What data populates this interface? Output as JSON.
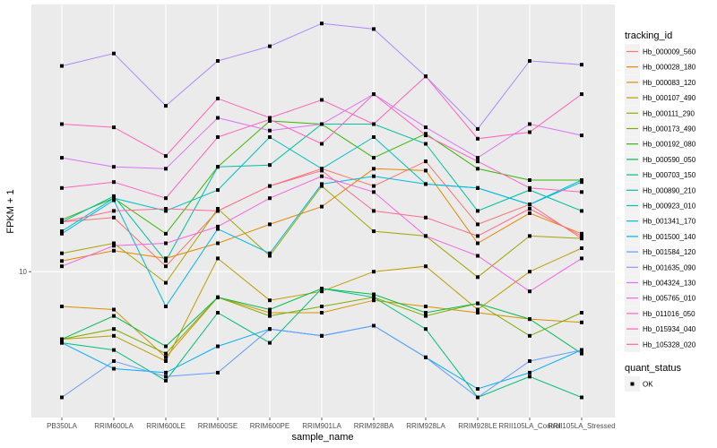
{
  "chart_data": {
    "type": "line",
    "title": "",
    "xlabel": "sample_name",
    "ylabel": "FPKM + 1",
    "y_scale": "log10",
    "ylim": [
      5.85,
      26.7
    ],
    "y_ticks": [
      10
    ],
    "y_tick_labels": [
      "10"
    ],
    "grid": true,
    "legend_position": "right",
    "categories": [
      "PB350LA",
      "RRIM600LA",
      "RRIM600LE",
      "RRIM600SE",
      "RRIM600PE",
      "RRIM901LA",
      "RRIM928BA",
      "RRIM928LA",
      "RRIM928LE",
      "RRII105LA_Control",
      "RRII105LA_Stressed"
    ],
    "color_legend_title": "tracking_id",
    "shape_legend_title": "quant_status",
    "shape_legend_items": [
      "OK"
    ],
    "series": [
      {
        "name": "Hb_000009_560",
        "color": "#F8766D",
        "values": [
          12.0,
          12.2,
          10.2,
          12.5,
          13.7,
          14.6,
          13.7,
          15.0,
          11.9,
          12.8,
          11.3
        ]
      },
      {
        "name": "Hb_000028_180",
        "color": "#E58700",
        "values": [
          10.4,
          10.8,
          10.5,
          11.1,
          11.9,
          12.7,
          14.6,
          14.5,
          11.1,
          12.4,
          11.5
        ]
      },
      {
        "name": "Hb_000083_120",
        "color": "#D89000",
        "values": [
          8.8,
          8.7,
          7.3,
          9.1,
          8.6,
          8.6,
          9.0,
          8.8,
          8.6,
          8.4,
          8.3
        ]
      },
      {
        "name": "Hb_000107_490",
        "color": "#C09B00",
        "values": [
          7.8,
          7.9,
          7.2,
          10.5,
          9.0,
          9.3,
          10.0,
          10.2,
          8.7,
          10.0,
          10.9
        ]
      },
      {
        "name": "Hb_000111_290",
        "color": "#A3A500",
        "values": [
          10.7,
          11.1,
          9.6,
          12.6,
          10.6,
          13.7,
          11.6,
          11.4,
          9.8,
          11.4,
          11.3
        ]
      },
      {
        "name": "Hb_000173_490",
        "color": "#7CAE00",
        "values": [
          7.8,
          8.1,
          7.4,
          9.1,
          8.5,
          8.8,
          9.1,
          8.5,
          8.9,
          7.9,
          8.6
        ]
      },
      {
        "name": "Hb_000192_080",
        "color": "#39B600",
        "values": [
          12.1,
          13.1,
          11.5,
          14.7,
          17.4,
          17.2,
          15.2,
          16.6,
          14.6,
          14.0,
          14.0
        ]
      },
      {
        "name": "Hb_000590_050",
        "color": "#00BB4E",
        "values": [
          7.8,
          8.5,
          7.6,
          9.1,
          8.7,
          9.4,
          9.2,
          8.6,
          8.9,
          8.4,
          7.4
        ]
      },
      {
        "name": "Hb_000703_150",
        "color": "#00BF7D",
        "values": [
          7.7,
          7.5,
          6.7,
          8.6,
          7.7,
          9.4,
          9.1,
          8.1,
          6.3,
          6.8,
          6.3
        ]
      },
      {
        "name": "Hb_000890_210",
        "color": "#00C1A3",
        "values": [
          12.0,
          13.2,
          10.4,
          14.7,
          14.8,
          17.2,
          17.2,
          16.0,
          12.5,
          13.5,
          12.5
        ]
      },
      {
        "name": "Hb_000923_010",
        "color": "#00BFC4",
        "values": [
          11.6,
          13.1,
          12.5,
          13.5,
          16.4,
          14.6,
          16.4,
          13.8,
          13.6,
          12.8,
          14.0
        ]
      },
      {
        "name": "Hb_001341_170",
        "color": "#00B9E3",
        "values": [
          11.5,
          13.0,
          8.8,
          11.7,
          10.7,
          13.8,
          14.2,
          13.8,
          13.6,
          12.8,
          13.9
        ]
      },
      {
        "name": "Hb_001500_140",
        "color": "#00ADFA",
        "values": [
          7.7,
          7.0,
          6.9,
          7.6,
          8.1,
          7.9,
          8.2,
          7.3,
          6.5,
          6.9,
          7.5
        ]
      },
      {
        "name": "Hb_001584_120",
        "color": "#619CFF",
        "values": [
          6.3,
          7.2,
          6.8,
          6.9,
          8.1,
          7.9,
          8.2,
          7.3,
          6.3,
          7.2,
          7.5
        ]
      },
      {
        "name": "Hb_001635_090",
        "color": "#AE87FF",
        "values": [
          21.3,
          22.3,
          18.4,
          21.7,
          22.9,
          24.9,
          24.4,
          20.5,
          16.9,
          21.7,
          21.4
        ]
      },
      {
        "name": "Hb_004324_130",
        "color": "#DB72FB",
        "values": [
          15.2,
          14.7,
          14.6,
          17.6,
          16.8,
          17.2,
          19.2,
          17.0,
          15.2,
          17.2,
          16.5
        ]
      },
      {
        "name": "Hb_005765_010",
        "color": "#F564E3",
        "values": [
          10.2,
          11.0,
          11.1,
          11.8,
          13.1,
          14.2,
          13.4,
          11.4,
          10.6,
          9.3,
          10.5
        ]
      },
      {
        "name": "Hb_011016_050",
        "color": "#FF61C3",
        "values": [
          13.6,
          13.9,
          13.1,
          16.4,
          17.5,
          16.0,
          19.2,
          16.5,
          15.0,
          13.6,
          13.4
        ]
      },
      {
        "name": "Hb_015934_040",
        "color": "#FF62BC",
        "values": [
          17.2,
          17.0,
          15.3,
          18.9,
          17.6,
          18.8,
          17.2,
          20.5,
          16.3,
          16.7,
          19.2
        ]
      },
      {
        "name": "Hb_105328_020",
        "color": "#FF6C91",
        "values": [
          12.0,
          12.5,
          12.6,
          12.5,
          13.7,
          14.5,
          12.5,
          12.2,
          11.4,
          12.6,
          11.4
        ]
      }
    ]
  }
}
